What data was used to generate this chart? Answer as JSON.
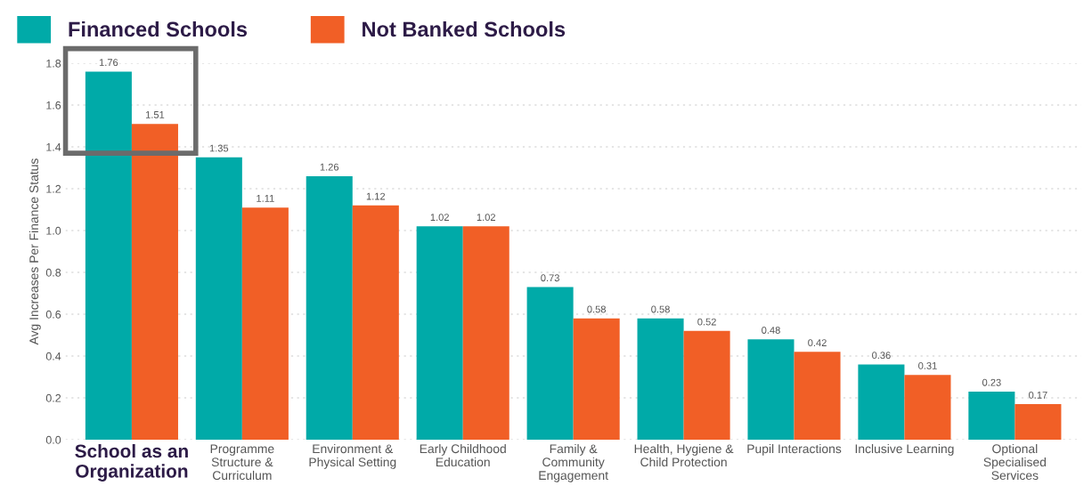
{
  "chart_data": {
    "type": "bar",
    "ylabel": "Avg Increases Per Finance Status",
    "categories": [
      "School as an\nOrganization",
      "Programme\nStructure &\nCurriculum",
      "Environment &\nPhysical Setting",
      "Early Childhood\nEducation",
      "Family &\nCommunity\nEngagement",
      "Health, Hygiene &\nChild Protection",
      "Pupil Interactions",
      "Inclusive Learning",
      "Optional\nSpecialised\nServices"
    ],
    "series": [
      {
        "name": "Financed Schools",
        "color": "#00aaa8",
        "values": [
          1.76,
          1.35,
          1.26,
          1.02,
          0.73,
          0.58,
          0.48,
          0.36,
          0.23
        ]
      },
      {
        "name": "Not Banked Schools",
        "color": "#f15f26",
        "values": [
          1.51,
          1.11,
          1.12,
          1.02,
          0.58,
          0.52,
          0.42,
          0.31,
          0.17
        ]
      }
    ],
    "ylim": [
      0,
      1.8
    ],
    "yticks": [
      {
        "value": 0,
        "label": "0.0"
      },
      0.2,
      0.4,
      0.6,
      0.8,
      {
        "value": 1,
        "label": "1.0"
      },
      1.2,
      1.4,
      1.6,
      1.8
    ],
    "data_labels": true,
    "grid": "y",
    "legend": "top left"
  }
}
